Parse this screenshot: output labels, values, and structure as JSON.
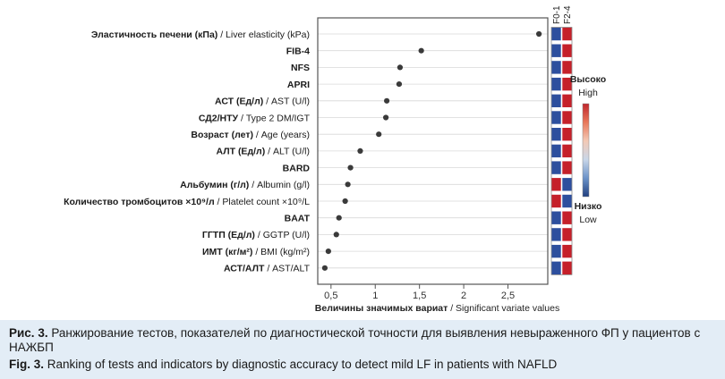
{
  "chart_data": {
    "type": "scatter",
    "orientation": "horizontal",
    "categories": [
      {
        "bold": "Эластичность печени (кПа)",
        "plain": " / Liver elasticity (kPa)"
      },
      {
        "bold": "FIB-4",
        "plain": ""
      },
      {
        "bold": "NFS",
        "plain": ""
      },
      {
        "bold": "APRI",
        "plain": ""
      },
      {
        "bold": "АСТ (Ед/л)",
        "plain": " / AST (U/l)"
      },
      {
        "bold": "СД2/НТУ",
        "plain": " / Type 2 DM/IGT"
      },
      {
        "bold": "Возраст (лет)",
        "plain": " / Age (years)"
      },
      {
        "bold": "АЛТ (Ед/л)",
        "plain": " / ALT (U/l)"
      },
      {
        "bold": "BARD",
        "plain": ""
      },
      {
        "bold": "Альбумин (г/л)",
        "plain": " / Albumin (g/l)"
      },
      {
        "bold": "Количество тромбоцитов ×10⁹/л",
        "plain": " / Platelet count ×10⁹/L"
      },
      {
        "bold": "BAAT",
        "plain": ""
      },
      {
        "bold": "ГГТП (Ед/л)",
        "plain": " / GGTP (U/l)"
      },
      {
        "bold": "ИМТ (кг/м²)",
        "plain": " / BMI (kg/m²)"
      },
      {
        "bold": "АСТ/АЛТ",
        "plain": " / AST/ALT"
      }
    ],
    "values": [
      2.85,
      1.52,
      1.28,
      1.27,
      1.13,
      1.12,
      1.04,
      0.83,
      0.72,
      0.69,
      0.66,
      0.59,
      0.56,
      0.47,
      0.43
    ],
    "xlim": [
      0.35,
      2.95
    ],
    "xticks": [
      0.5,
      1,
      1.5,
      2,
      2.5
    ],
    "xtick_labels": [
      "0,5",
      "1",
      "1,5",
      "2",
      "2,5"
    ],
    "xlabel_bold": "Величины значимых вариат",
    "xlabel_plain": " / Significant variate values",
    "heatmap_columns": [
      "F0-1",
      "F2-4"
    ],
    "heatmap": [
      [
        "#2d4f9e",
        "#c5202a"
      ],
      [
        "#2d4f9e",
        "#c5202a"
      ],
      [
        "#2d4f9e",
        "#c5202a"
      ],
      [
        "#2d4f9e",
        "#c5202a"
      ],
      [
        "#2d4f9e",
        "#c5202a"
      ],
      [
        "#2d4f9e",
        "#c5202a"
      ],
      [
        "#2d4f9e",
        "#c5202a"
      ],
      [
        "#2d4f9e",
        "#c5202a"
      ],
      [
        "#2d4f9e",
        "#c5202a"
      ],
      [
        "#c5202a",
        "#2d4f9e"
      ],
      [
        "#c5202a",
        "#2d4f9e"
      ],
      [
        "#2d4f9e",
        "#c5202a"
      ],
      [
        "#2d4f9e",
        "#c5202a"
      ],
      [
        "#2d4f9e",
        "#c5202a"
      ],
      [
        "#2d4f9e",
        "#c5202a"
      ]
    ],
    "colorbar": {
      "high_ru": "Высоко",
      "high_en": "High",
      "low_ru": "Низко",
      "low_en": "Low",
      "colors": [
        "#c0262d",
        "#e8775a",
        "#f3c9b5",
        "#c9d6e8",
        "#6c93c9",
        "#21407f"
      ]
    },
    "colors": {
      "point": "#3a3a3a",
      "plot_border": "#555555",
      "gridline": "#d8d8d8",
      "tick_text": "#333333"
    }
  },
  "caption": {
    "ru_label": "Рис. 3.",
    "ru_text": " Ранжирование тестов, показателей по диагностической точности для выявления невыраженного ФП у пациентов с НАЖБП",
    "en_label": "Fig. 3.",
    "en_text": " Ranking of tests and indicators by diagnostic accuracy to detect mild LF in patients with NAFLD"
  }
}
